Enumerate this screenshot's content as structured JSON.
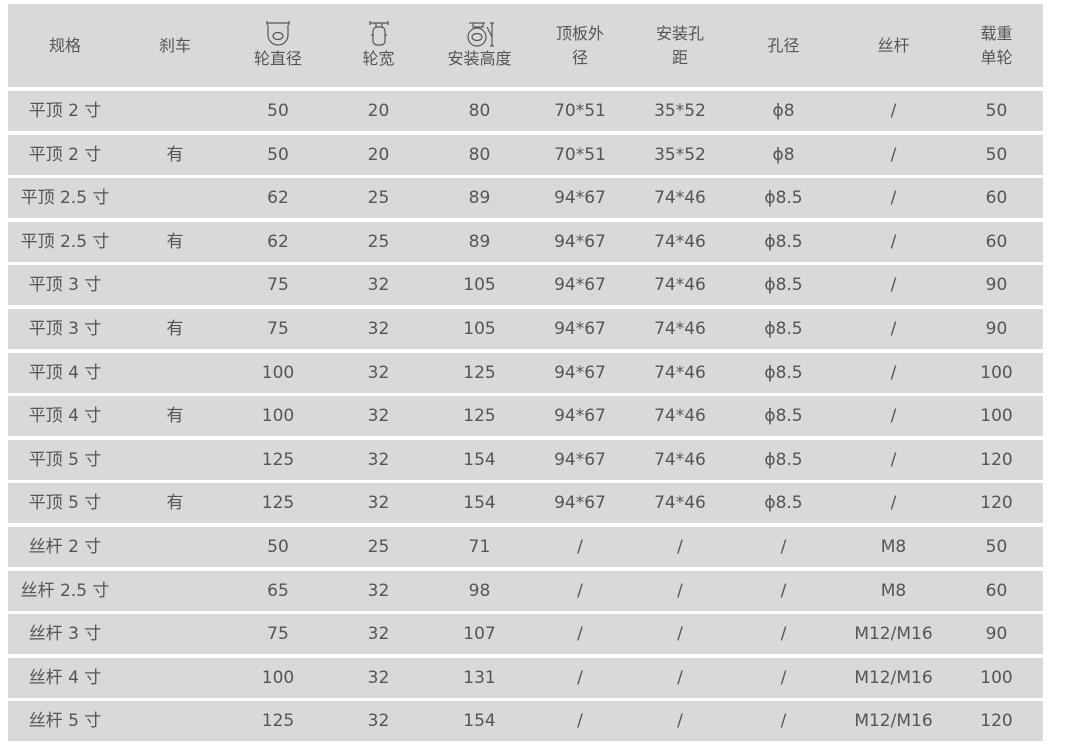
{
  "colors": {
    "row_bg": "#d9d9d9",
    "text": "#555555"
  },
  "headers": [
    {
      "label": "规格"
    },
    {
      "label": "刹车"
    },
    {
      "label": "轮直径",
      "icon": "wheel-diameter-icon"
    },
    {
      "label": "轮宽",
      "icon": "wheel-width-icon"
    },
    {
      "label": "安装高度",
      "icon": "mounting-height-icon"
    },
    {
      "label": "顶板外\n径"
    },
    {
      "label": "安装孔\n距"
    },
    {
      "label": "孔径"
    },
    {
      "label": "丝杆"
    },
    {
      "label": "载重\n单轮"
    }
  ],
  "rows": [
    [
      "平顶 2 寸",
      "",
      "50",
      "20",
      "80",
      "70*51",
      "35*52",
      "ϕ8",
      "/",
      "50"
    ],
    [
      "平顶 2 寸",
      "有",
      "50",
      "20",
      "80",
      "70*51",
      "35*52",
      "ϕ8",
      "/",
      "50"
    ],
    [
      "平顶 2.5 寸",
      "",
      "62",
      "25",
      "89",
      "94*67",
      "74*46",
      "ϕ8.5",
      "/",
      "60"
    ],
    [
      "平顶 2.5 寸",
      "有",
      "62",
      "25",
      "89",
      "94*67",
      "74*46",
      "ϕ8.5",
      "/",
      "60"
    ],
    [
      "平顶 3 寸",
      "",
      "75",
      "32",
      "105",
      "94*67",
      "74*46",
      "ϕ8.5",
      "/",
      "90"
    ],
    [
      "平顶 3 寸",
      "有",
      "75",
      "32",
      "105",
      "94*67",
      "74*46",
      "ϕ8.5",
      "/",
      "90"
    ],
    [
      "平顶 4 寸",
      "",
      "100",
      "32",
      "125",
      "94*67",
      "74*46",
      "ϕ8.5",
      "/",
      "100"
    ],
    [
      "平顶 4 寸",
      "有",
      "100",
      "32",
      "125",
      "94*67",
      "74*46",
      "ϕ8.5",
      "/",
      "100"
    ],
    [
      "平顶 5 寸",
      "",
      "125",
      "32",
      "154",
      "94*67",
      "74*46",
      "ϕ8.5",
      "/",
      "120"
    ],
    [
      "平顶 5 寸",
      "有",
      "125",
      "32",
      "154",
      "94*67",
      "74*46",
      "ϕ8.5",
      "/",
      "120"
    ],
    [
      "丝杆 2 寸",
      "",
      "50",
      "25",
      "71",
      "/",
      "/",
      "/",
      "M8",
      "50"
    ],
    [
      "丝杆 2.5 寸",
      "",
      "65",
      "32",
      "98",
      "/",
      "/",
      "/",
      "M8",
      "60"
    ],
    [
      "丝杆 3 寸",
      "",
      "75",
      "32",
      "107",
      "/",
      "/",
      "/",
      "M12/M16",
      "90"
    ],
    [
      "丝杆 4 寸",
      "",
      "100",
      "32",
      "131",
      "/",
      "/",
      "/",
      "M12/M16",
      "100"
    ],
    [
      "丝杆 5 寸",
      "",
      "125",
      "32",
      "154",
      "/",
      "/",
      "/",
      "M12/M16",
      "120"
    ]
  ]
}
